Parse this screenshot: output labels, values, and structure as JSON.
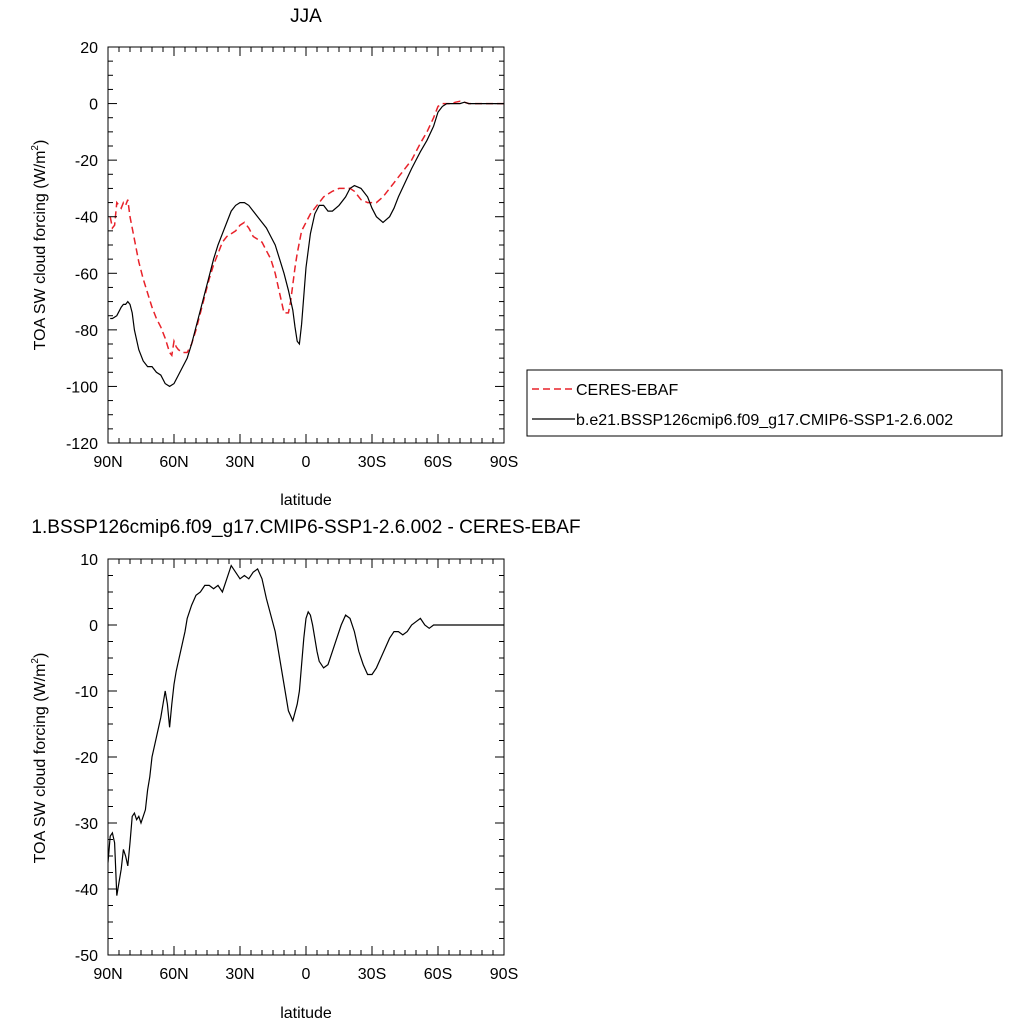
{
  "colors": {
    "model": "#000000",
    "obs": "#e8222a",
    "axis": "#000000",
    "background": "#ffffff"
  },
  "chart_data": [
    {
      "type": "line",
      "title": "JJA",
      "xlabel": "latitude",
      "ylabel": "TOA SW cloud forcing (W/m",
      "ylabel_sup": "2",
      "ylabel_close": ")",
      "xlim": [
        90,
        -90
      ],
      "ylim": [
        -120,
        20
      ],
      "x_ticks": [
        90,
        60,
        30,
        0,
        -30,
        -60,
        -90
      ],
      "x_tick_labels": [
        "90N",
        "60N",
        "30N",
        "0",
        "30S",
        "60S",
        "90S"
      ],
      "y_ticks": [
        20,
        0,
        -20,
        -40,
        -60,
        -80,
        -100,
        -120
      ],
      "y_tick_labels": [
        "20",
        "0",
        "-20",
        "-40",
        "-60",
        "-80",
        "-100",
        "-120"
      ],
      "legend_position": "right",
      "series": [
        {
          "name": "CERES-EBAF",
          "style": "dashed",
          "color": "#e8222a",
          "x": [
            89,
            88,
            87,
            86,
            85,
            84,
            83,
            82,
            81,
            80,
            78,
            76,
            74,
            72,
            70,
            68,
            66,
            64,
            62,
            61,
            60,
            59,
            58,
            56,
            54,
            52,
            50,
            48,
            46,
            44,
            42,
            40,
            38,
            36,
            34,
            32,
            30,
            28,
            26,
            24,
            22,
            20,
            18,
            16,
            14,
            12,
            10,
            8,
            7,
            6,
            5,
            4,
            3,
            2,
            0,
            -2,
            -4,
            -6,
            -8,
            -10,
            -12,
            -15,
            -18,
            -20,
            -22,
            -25,
            -28,
            -30,
            -32,
            -35,
            -38,
            -40,
            -42,
            -45,
            -48,
            -50,
            -52,
            -55,
            -58,
            -60,
            -62,
            -64,
            -66,
            -68,
            -70,
            -72,
            -74,
            -76,
            -78,
            -80,
            -82,
            -84,
            -86,
            -88,
            -90
          ],
          "y": [
            -40,
            -44,
            -43,
            -35,
            -36,
            -37,
            -35,
            -36,
            -34,
            -40,
            -48,
            -56,
            -62,
            -67,
            -72,
            -76,
            -79,
            -83,
            -88,
            -89,
            -84,
            -86,
            -87,
            -88,
            -88,
            -85,
            -80,
            -74,
            -68,
            -62,
            -57,
            -53,
            -49,
            -47,
            -46,
            -45,
            -43,
            -42,
            -44,
            -47,
            -48,
            -49,
            -52,
            -55,
            -60,
            -67,
            -74,
            -74,
            -70,
            -64,
            -58,
            -53,
            -49,
            -45,
            -42,
            -39,
            -37,
            -35,
            -33,
            -32,
            -31,
            -30,
            -30,
            -30,
            -31,
            -34,
            -35,
            -35,
            -35,
            -33,
            -30,
            -28,
            -26,
            -23,
            -20,
            -17,
            -14,
            -10,
            -5,
            -1,
            0,
            0,
            0,
            0.5,
            0.8,
            0.5,
            0,
            0,
            0,
            0,
            0,
            0,
            0,
            0,
            0
          ]
        },
        {
          "name": "b.e21.BSSP126cmip6.f09_g17.CMIP6-SSP1-2.6.002",
          "style": "solid",
          "color": "#000000",
          "x": [
            89,
            88,
            86,
            84,
            83,
            82,
            81,
            80,
            79,
            78,
            76,
            74,
            72,
            70,
            68,
            66,
            64,
            62,
            60,
            58,
            56,
            54,
            52,
            50,
            48,
            46,
            44,
            42,
            40,
            38,
            36,
            34,
            32,
            30,
            28,
            26,
            24,
            22,
            20,
            18,
            16,
            14,
            12,
            10,
            8,
            6,
            5,
            4,
            3,
            2,
            1,
            0,
            -2,
            -4,
            -6,
            -8,
            -10,
            -12,
            -15,
            -18,
            -20,
            -22,
            -25,
            -28,
            -30,
            -32,
            -35,
            -38,
            -40,
            -42,
            -45,
            -48,
            -50,
            -52,
            -55,
            -58,
            -60,
            -62,
            -64,
            -66,
            -68,
            -70,
            -72,
            -74,
            -76,
            -78,
            -80,
            -82,
            -84,
            -86,
            -88,
            -90
          ],
          "y": [
            -76,
            -76,
            -75,
            -72,
            -71,
            -71,
            -70,
            -71,
            -74,
            -80,
            -87,
            -91,
            -93,
            -93,
            -95,
            -96,
            -99,
            -100,
            -99,
            -96,
            -93,
            -90,
            -85,
            -79,
            -73,
            -67,
            -61,
            -55,
            -50,
            -46,
            -42,
            -38,
            -36,
            -35,
            -35,
            -36,
            -38,
            -40,
            -42,
            -44,
            -47,
            -50,
            -55,
            -60,
            -66,
            -73,
            -79,
            -84,
            -85,
            -78,
            -68,
            -58,
            -46,
            -39,
            -36,
            -36,
            -38,
            -38,
            -36,
            -33,
            -30,
            -29,
            -30,
            -33,
            -37,
            -40,
            -42,
            -40,
            -37,
            -33,
            -28,
            -23,
            -20,
            -17,
            -13,
            -8,
            -3,
            -1,
            0,
            0,
            0,
            0,
            0.5,
            0,
            0,
            0,
            0,
            0,
            0,
            0,
            0,
            0
          ]
        }
      ]
    },
    {
      "type": "line",
      "title": "1.BSSP126cmip6.f09_g17.CMIP6-SSP1-2.6.002 - CERES-EBAF",
      "xlabel": "latitude",
      "ylabel": "TOA SW cloud forcing (W/m",
      "ylabel_sup": "2",
      "ylabel_close": ")",
      "xlim": [
        90,
        -90
      ],
      "ylim": [
        -50,
        10
      ],
      "x_ticks": [
        90,
        60,
        30,
        0,
        -30,
        -60,
        -90
      ],
      "x_tick_labels": [
        "90N",
        "60N",
        "30N",
        "0",
        "30S",
        "60S",
        "90S"
      ],
      "y_ticks": [
        10,
        0,
        -10,
        -20,
        -30,
        -40,
        -50
      ],
      "y_tick_labels": [
        "10",
        "0",
        "-10",
        "-20",
        "-30",
        "-40",
        "-50"
      ],
      "series": [
        {
          "style": "solid",
          "color": "#000000",
          "x": [
            90,
            89,
            88,
            87,
            86,
            85,
            84,
            83,
            82,
            81,
            80,
            79,
            78,
            77,
            76,
            75,
            74,
            73,
            72,
            71,
            70,
            68,
            66,
            65,
            64,
            63,
            62,
            61,
            60,
            59,
            58,
            57,
            56,
            55,
            54,
            52,
            50,
            48,
            46,
            44,
            42,
            40,
            38,
            36,
            34,
            32,
            30,
            28,
            26,
            24,
            22,
            20,
            18,
            16,
            14,
            12,
            10,
            8,
            6,
            4,
            3,
            2,
            1,
            0,
            -1,
            -2,
            -3,
            -4,
            -5,
            -6,
            -8,
            -10,
            -12,
            -14,
            -16,
            -18,
            -20,
            -22,
            -24,
            -26,
            -28,
            -30,
            -32,
            -34,
            -36,
            -38,
            -40,
            -42,
            -44,
            -46,
            -48,
            -50,
            -52,
            -54,
            -56,
            -58,
            -60,
            -62,
            -64,
            -66,
            -68,
            -70,
            -72,
            -74,
            -76,
            -78,
            -80,
            -82,
            -84,
            -86,
            -88,
            -90
          ],
          "y": [
            -36,
            -32,
            -31.5,
            -33,
            -41,
            -39,
            -37,
            -34,
            -35,
            -36.5,
            -33,
            -29,
            -28.5,
            -29.5,
            -29,
            -30,
            -29,
            -28,
            -25,
            -23,
            -20,
            -17,
            -14,
            -12,
            -10,
            -12,
            -15.5,
            -12,
            -9,
            -7,
            -5.5,
            -4,
            -2.5,
            -1,
            1,
            3,
            4.5,
            5,
            6,
            6,
            5.5,
            6,
            5,
            7,
            9,
            8,
            7,
            7.5,
            7,
            8,
            8.5,
            7,
            4,
            1.5,
            -1,
            -5,
            -9,
            -13,
            -14.5,
            -12,
            -10,
            -6,
            -2,
            1,
            2,
            1.5,
            0,
            -2,
            -4,
            -5.5,
            -6.5,
            -6,
            -4,
            -2,
            0,
            1.5,
            1,
            -1,
            -4,
            -6,
            -7.5,
            -7.5,
            -6.5,
            -5,
            -3.5,
            -2,
            -1,
            -1,
            -1.5,
            -1,
            0,
            0.5,
            1,
            0,
            -0.5,
            0,
            0,
            0,
            0,
            0,
            0,
            0,
            0,
            0,
            0,
            0,
            0,
            0,
            0,
            0,
            0,
            0
          ]
        }
      ]
    }
  ]
}
